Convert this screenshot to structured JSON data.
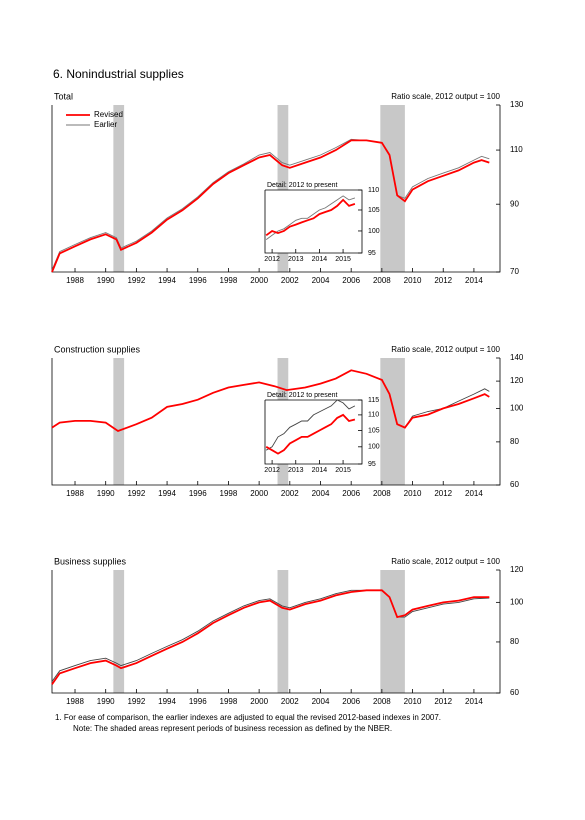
{
  "title": "6. Nonindustrial supplies",
  "notes": [
    "1. For ease of comparison, the earlier indexes are adjusted to equal the revised 2012-based indexes in 2007.",
    "Note: The shaded areas represent periods of business recession as defined by the NBER."
  ],
  "chart_data": [
    {
      "type": "line",
      "title": "Total",
      "subtitle": "Ratio scale, 2012 output = 100",
      "log_scale": true,
      "xlim": [
        1986.5,
        2015.7
      ],
      "xticks": [
        1988,
        1990,
        1992,
        1994,
        1996,
        1998,
        2000,
        2002,
        2004,
        2006,
        2008,
        2010,
        2012,
        2014
      ],
      "ylim": [
        70,
        130
      ],
      "yticks": [
        70,
        90,
        110,
        130
      ],
      "recessions": [
        [
          1990.5,
          1991.2
        ],
        [
          2001.2,
          2001.9
        ],
        [
          2007.9,
          2009.5
        ]
      ],
      "x": [
        1986.5,
        1987,
        1988,
        1989,
        1990,
        1990.7,
        1991,
        1992,
        1993,
        1994,
        1995,
        1996,
        1997,
        1998,
        1999,
        2000,
        2000.7,
        2001.5,
        2002,
        2003,
        2004,
        2005,
        2006,
        2007,
        2008,
        2008.5,
        2009,
        2009.5,
        2010,
        2011,
        2012,
        2013,
        2014,
        2014.5,
        2015
      ],
      "series": [
        {
          "name": "Revised",
          "color": "#ff0000",
          "values": [
            70,
            75,
            77,
            79,
            80.5,
            79,
            76,
            78,
            81,
            85,
            88,
            92,
            97,
            101,
            104,
            107,
            108,
            104,
            103,
            105,
            107,
            110,
            114,
            114,
            113,
            108,
            93,
            91,
            95,
            98,
            100,
            102,
            105,
            106,
            105
          ]
        },
        {
          "name": "Earlier",
          "color": "#777777",
          "values": [
            70.5,
            75.5,
            77.5,
            79.5,
            81,
            79.5,
            76.5,
            78.5,
            81.5,
            85.5,
            88.5,
            92.5,
            97.5,
            101.5,
            104.5,
            108,
            109,
            105,
            104,
            106,
            108,
            111,
            114.5,
            114,
            113,
            108,
            93,
            92,
            96,
            99,
            101,
            103,
            106,
            107.5,
            106.5
          ]
        }
      ]
    },
    {
      "type": "line",
      "title": "Detail: 2012 to present",
      "log_scale": true,
      "xlim": [
        2011.7,
        2015.8
      ],
      "xticks": [
        2012,
        2013,
        2014,
        2015
      ],
      "ylim": [
        95,
        110
      ],
      "yticks": [
        95,
        100,
        105,
        110
      ],
      "x": [
        2011.75,
        2012,
        2012.25,
        2012.5,
        2012.75,
        2013,
        2013.25,
        2013.5,
        2013.75,
        2014,
        2014.25,
        2014.5,
        2014.75,
        2015,
        2015.25,
        2015.5
      ],
      "series": [
        {
          "color": "#ff0000",
          "values": [
            99,
            100,
            99.5,
            100,
            101,
            101.5,
            102,
            102.5,
            103,
            104,
            104.5,
            105,
            106,
            107.5,
            106,
            106.5
          ]
        },
        {
          "color": "#777777",
          "values": [
            98,
            99,
            100,
            100.5,
            101.5,
            102.5,
            103,
            103,
            104,
            105,
            105.5,
            106.5,
            107.5,
            108.5,
            107.5,
            108
          ]
        }
      ]
    },
    {
      "type": "line",
      "title": "Construction supplies",
      "subtitle": "Ratio scale, 2012 output = 100",
      "log_scale": true,
      "xlim": [
        1986.5,
        2015.7
      ],
      "xticks": [
        1988,
        1990,
        1992,
        1994,
        1996,
        1998,
        2000,
        2002,
        2004,
        2006,
        2008,
        2010,
        2012,
        2014
      ],
      "ylim": [
        60,
        140
      ],
      "yticks": [
        60,
        80,
        100,
        120,
        140
      ],
      "recessions": [
        [
          1990.5,
          1991.2
        ],
        [
          2001.2,
          2001.9
        ],
        [
          2007.9,
          2009.5
        ]
      ],
      "x": [
        1986.5,
        1987,
        1988,
        1989,
        1990,
        1990.8,
        1992,
        1993,
        1994,
        1995,
        1996,
        1997,
        1998,
        1999,
        2000,
        2001,
        2001.8,
        2003,
        2004,
        2005,
        2006,
        2007,
        2008,
        2008.5,
        2009,
        2009.5,
        2010,
        2011,
        2012,
        2013,
        2014,
        2014.7,
        2015
      ],
      "series": [
        {
          "color": "#ff0000",
          "values": [
            88,
            91,
            92,
            92,
            91,
            86,
            90,
            94,
            101,
            103,
            106,
            111,
            115,
            117,
            119,
            116,
            113,
            115,
            118,
            122,
            129,
            126,
            121,
            110,
            90,
            88,
            94,
            96,
            100,
            103,
            107,
            110,
            108
          ]
        },
        {
          "color": "#444444",
          "values": [
            88,
            91,
            92,
            92,
            91,
            86,
            90,
            94,
            101,
            103,
            106,
            111,
            115,
            117,
            119,
            116,
            113,
            115,
            118,
            122,
            129,
            126,
            121,
            110,
            90,
            88,
            95,
            98,
            100,
            105,
            110,
            114,
            112
          ]
        }
      ]
    },
    {
      "type": "line",
      "title": "Detail: 2012 to present",
      "log_scale": true,
      "xlim": [
        2011.7,
        2015.8
      ],
      "xticks": [
        2012,
        2013,
        2014,
        2015
      ],
      "ylim": [
        95,
        115
      ],
      "yticks": [
        95,
        100,
        105,
        110,
        115
      ],
      "x": [
        2011.75,
        2012,
        2012.25,
        2012.5,
        2012.75,
        2013,
        2013.25,
        2013.5,
        2013.75,
        2014,
        2014.25,
        2014.5,
        2014.75,
        2015,
        2015.25,
        2015.5
      ],
      "series": [
        {
          "color": "#ff0000",
          "values": [
            100,
            99,
            98,
            99,
            101,
            102,
            103,
            103,
            104,
            105,
            106,
            107,
            109,
            110,
            108,
            108.5
          ]
        },
        {
          "color": "#444444",
          "values": [
            99,
            100,
            103,
            104,
            106,
            107,
            108,
            108,
            110,
            111,
            112,
            113,
            115,
            114,
            112,
            113
          ]
        }
      ]
    },
    {
      "type": "line",
      "title": "Business supplies",
      "subtitle": "Ratio scale, 2012 output = 100",
      "log_scale": true,
      "xlim": [
        1986.5,
        2015.7
      ],
      "xticks": [
        1988,
        1990,
        1992,
        1994,
        1996,
        1998,
        2000,
        2002,
        2004,
        2006,
        2008,
        2010,
        2012,
        2014
      ],
      "ylim": [
        60,
        120
      ],
      "yticks": [
        60,
        80,
        100,
        120
      ],
      "recessions": [
        [
          1990.5,
          1991.2
        ],
        [
          2001.2,
          2001.9
        ],
        [
          2007.9,
          2009.5
        ]
      ],
      "x": [
        1986.5,
        1987,
        1988,
        1989,
        1990,
        1990.7,
        1991,
        1992,
        1993,
        1994,
        1995,
        1996,
        1997,
        1998,
        1999,
        2000,
        2000.7,
        2001.5,
        2002,
        2003,
        2004,
        2005,
        2006,
        2007,
        2008,
        2008.5,
        2009,
        2009.5,
        2010,
        2011,
        2012,
        2013,
        2014,
        2015
      ],
      "series": [
        {
          "color": "#ff0000",
          "values": [
            63,
            67,
            69,
            71,
            72,
            70,
            69,
            71,
            74,
            77,
            80,
            84,
            89,
            93,
            97,
            100,
            101,
            97,
            96,
            99,
            101,
            104,
            106,
            107,
            107,
            103,
            92,
            93,
            96,
            98,
            100,
            101,
            103,
            103
          ]
        },
        {
          "color": "#444444",
          "values": [
            64,
            68,
            70,
            72,
            73,
            71,
            70,
            72,
            75,
            78,
            81,
            85,
            90,
            94,
            98,
            101,
            102,
            98,
            97,
            100,
            102,
            105,
            107,
            107,
            107,
            103,
            92,
            92,
            95,
            97,
            99,
            100,
            102,
            102.5
          ]
        }
      ]
    }
  ]
}
